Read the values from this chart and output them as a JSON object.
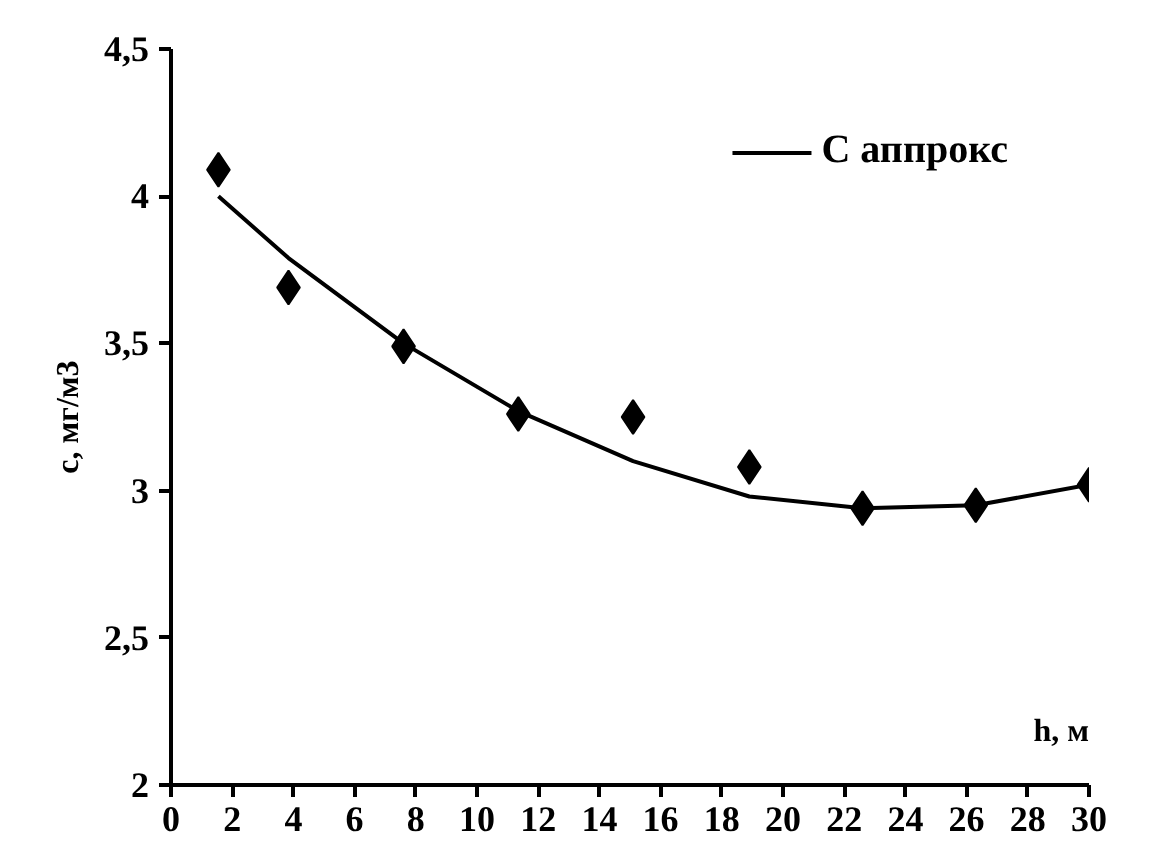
{
  "chart_data": {
    "type": "scatter",
    "xlabel": "h, м",
    "ylabel": "c, мг/м3",
    "x": [
      1.55,
      3.84,
      7.6,
      11.35,
      15.1,
      18.9,
      22.6,
      26.3,
      30
    ],
    "series": [
      {
        "color": "#000000",
        "marker": "diamond",
        "values": [
          4.09,
          3.69,
          3.49,
          3.26,
          3.25,
          3.08,
          2.94,
          2.95,
          3.02
        ]
      },
      {
        "type": "line",
        "name": "С аппрокс",
        "color": "#000000",
        "marker": "none",
        "line_style": "solid",
        "values": [
          4.0,
          3.79,
          3.5,
          3.27,
          3.1,
          2.98,
          2.94,
          2.95,
          3.02
        ]
      }
    ],
    "xlim": [
      0,
      30
    ],
    "ylim": [
      2,
      4.5
    ],
    "xticks": [
      0,
      2,
      4,
      6,
      8,
      10,
      12,
      14,
      16,
      18,
      20,
      22,
      24,
      26,
      28,
      30
    ],
    "yticks": [
      {
        "value": 2,
        "label": "2"
      },
      {
        "value": 2.5,
        "label": "2,5"
      },
      {
        "value": 3,
        "label": "3"
      },
      {
        "value": 3.5,
        "label": "3,5"
      },
      {
        "value": 4,
        "label": "4"
      },
      {
        "value": 4.5,
        "label": "4,5"
      }
    ],
    "grid": false,
    "legend": "top right"
  }
}
